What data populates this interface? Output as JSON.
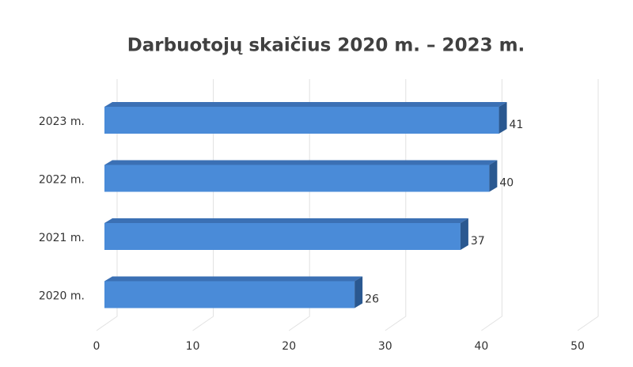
{
  "chart_data": {
    "type": "bar",
    "orientation": "horizontal",
    "title": "Darbuotojų skaičius 2020 m. – 2023 m.",
    "categories": [
      "2023 m.",
      "2022 m.",
      "2021 m.",
      "2020 m."
    ],
    "values": [
      41,
      40,
      37,
      26
    ],
    "color": "#4a8bd8",
    "xlim": [
      0,
      50
    ],
    "xticks": [
      0,
      10,
      20,
      30,
      40,
      50
    ],
    "grid": true
  }
}
